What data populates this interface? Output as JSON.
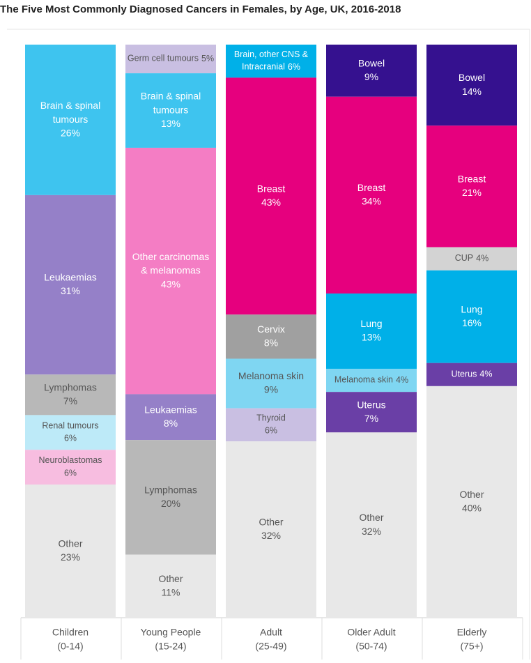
{
  "chart_data": {
    "type": "stacked_percent_bar",
    "title": "The Five Most Commonly Diagnosed Cancers in Females, by Age, UK, 2016-2018",
    "columns": [
      {
        "name": "Children",
        "age": "(0-14)",
        "segments": [
          {
            "name": "Brain & spinal tumours",
            "value": 26,
            "value_label": "26%",
            "color": "#3ec4ef"
          },
          {
            "name": "Leukaemias",
            "value": 31,
            "value_label": "31%",
            "color": "#9580c8"
          },
          {
            "name": "Lymphomas",
            "value": 7,
            "value_label": "7%",
            "color": "#b8b8b8"
          },
          {
            "name": "Renal tumours",
            "value": 6,
            "value_label": "6%",
            "color": "#bdeaf8"
          },
          {
            "name": "Neuroblastomas",
            "value": 6,
            "value_label": "6%",
            "color": "#f7bde0"
          },
          {
            "name": "Other",
            "value": 23,
            "value_label": "23%",
            "color": "#e8e8e8"
          }
        ]
      },
      {
        "name": "Young People",
        "age": "(15-24)",
        "segments": [
          {
            "name": "Germ cell tumours",
            "value": 5,
            "value_label": "5%",
            "color": "#c9bfe2"
          },
          {
            "name": "Brain & spinal tumours",
            "value": 13,
            "value_label": "13%",
            "color": "#3ec4ef"
          },
          {
            "name": "Other carcinomas & melanomas",
            "value": 43,
            "value_label": "43%",
            "color": "#f47dc4"
          },
          {
            "name": "Leukaemias",
            "value": 8,
            "value_label": "8%",
            "color": "#9580c8"
          },
          {
            "name": "Lymphomas",
            "value": 20,
            "value_label": "20%",
            "color": "#b8b8b8"
          },
          {
            "name": "Other",
            "value": 11,
            "value_label": "11%",
            "color": "#e8e8e8"
          }
        ]
      },
      {
        "name": "Adult",
        "age": "(25-49)",
        "segments": [
          {
            "name": "Brain, other CNS & Intracranial",
            "value": 6,
            "value_label": "6%",
            "color": "#00b0e8"
          },
          {
            "name": "Breast",
            "value": 43,
            "value_label": "43%",
            "color": "#e6007e"
          },
          {
            "name": "Cervix",
            "value": 8,
            "value_label": "8%",
            "color": "#a0a0a0"
          },
          {
            "name": "Melanoma skin",
            "value": 9,
            "value_label": "9%",
            "color": "#7fd6f2"
          },
          {
            "name": "Thyroid",
            "value": 6,
            "value_label": "6%",
            "color": "#c9bfe2"
          },
          {
            "name": "Other",
            "value": 32,
            "value_label": "32%",
            "color": "#e8e8e8"
          }
        ]
      },
      {
        "name": "Older Adult",
        "age": "(50-74)",
        "segments": [
          {
            "name": "Bowel",
            "value": 9,
            "value_label": "9%",
            "color": "#35118f"
          },
          {
            "name": "Breast",
            "value": 34,
            "value_label": "34%",
            "color": "#e6007e"
          },
          {
            "name": "Lung",
            "value": 13,
            "value_label": "13%",
            "color": "#00b0e8"
          },
          {
            "name": "Melanoma skin",
            "value": 4,
            "value_label": "4%",
            "color": "#7fd6f2"
          },
          {
            "name": "Uterus",
            "value": 7,
            "value_label": "7%",
            "color": "#6a3fa6"
          },
          {
            "name": "Other",
            "value": 32,
            "value_label": "32%",
            "color": "#e8e8e8"
          }
        ]
      },
      {
        "name": "Elderly",
        "age": "(75+)",
        "segments": [
          {
            "name": "Bowel",
            "value": 14,
            "value_label": "14%",
            "color": "#35118f"
          },
          {
            "name": "Breast",
            "value": 21,
            "value_label": "21%",
            "color": "#e6007e"
          },
          {
            "name": "CUP",
            "value": 4,
            "value_label": "4%",
            "color": "#d3d3d3"
          },
          {
            "name": "Lung",
            "value": 16,
            "value_label": "16%",
            "color": "#00b0e8"
          },
          {
            "name": "Uterus",
            "value": 4,
            "value_label": "4%",
            "color": "#6a3fa6"
          },
          {
            "name": "Other",
            "value": 40,
            "value_label": "40%",
            "color": "#e8e8e8"
          }
        ]
      }
    ]
  }
}
